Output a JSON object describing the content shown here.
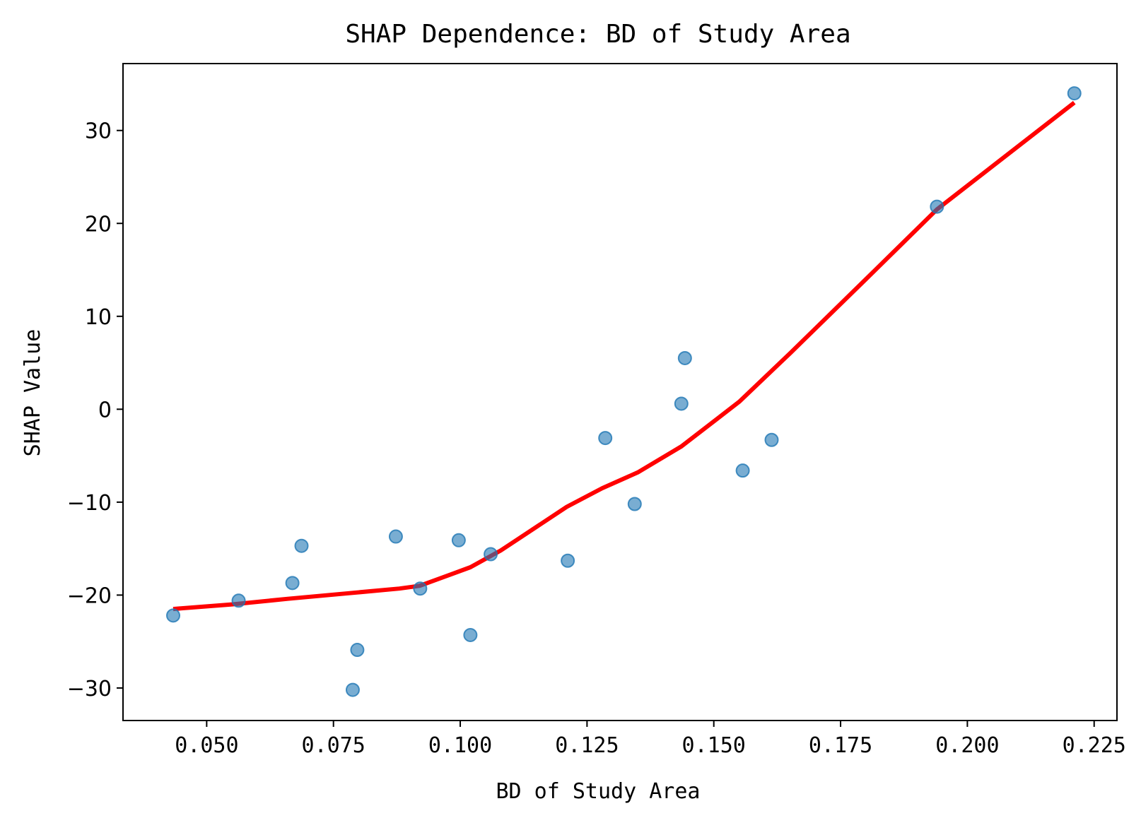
{
  "chart_data": {
    "type": "scatter",
    "title": "SHAP Dependence: BD of Study Area",
    "xlabel": "BD of Study Area",
    "ylabel": "SHAP Value",
    "xlim": [
      0.0335,
      0.2295
    ],
    "ylim": [
      -33.5,
      37.2
    ],
    "xticks": [
      0.05,
      0.075,
      0.1,
      0.125,
      0.15,
      0.175,
      0.2,
      0.225
    ],
    "xtick_labels": [
      "0.050",
      "0.075",
      "0.100",
      "0.125",
      "0.150",
      "0.175",
      "0.200",
      "0.225"
    ],
    "yticks": [
      -30,
      -20,
      -10,
      0,
      10,
      20,
      30
    ],
    "ytick_labels": [
      "−30",
      "−20",
      "−10",
      "0",
      "10",
      "20",
      "30"
    ],
    "grid": false,
    "colors": {
      "points": "#1f77b4",
      "trend": "#ff0000"
    },
    "series": [
      {
        "type": "scatter",
        "x": [
          0.0434,
          0.0563,
          0.0669,
          0.0687,
          0.0788,
          0.0797,
          0.0873,
          0.0921,
          0.0997,
          0.102,
          0.106,
          0.1212,
          0.1286,
          0.1344,
          0.1436,
          0.1443,
          0.1557,
          0.1614,
          0.194,
          0.2211
        ],
        "y": [
          -22.2,
          -20.6,
          -18.7,
          -14.7,
          -30.2,
          -25.9,
          -13.7,
          -19.3,
          -14.1,
          -24.3,
          -15.6,
          -16.3,
          -3.1,
          -10.2,
          0.6,
          5.5,
          -6.6,
          -3.3,
          21.8,
          34.0
        ]
      },
      {
        "type": "line",
        "x": [
          0.0434,
          0.055,
          0.066,
          0.078,
          0.088,
          0.092,
          0.102,
          0.108,
          0.121,
          0.128,
          0.135,
          0.1436,
          0.155,
          0.165,
          0.18,
          0.194,
          0.2211
        ],
        "y": [
          -21.5,
          -21.0,
          -20.4,
          -19.8,
          -19.3,
          -19.0,
          -17.0,
          -15.2,
          -10.5,
          -8.5,
          -6.8,
          -4.0,
          0.8,
          6.0,
          14.0,
          21.5,
          33.0
        ]
      }
    ]
  }
}
